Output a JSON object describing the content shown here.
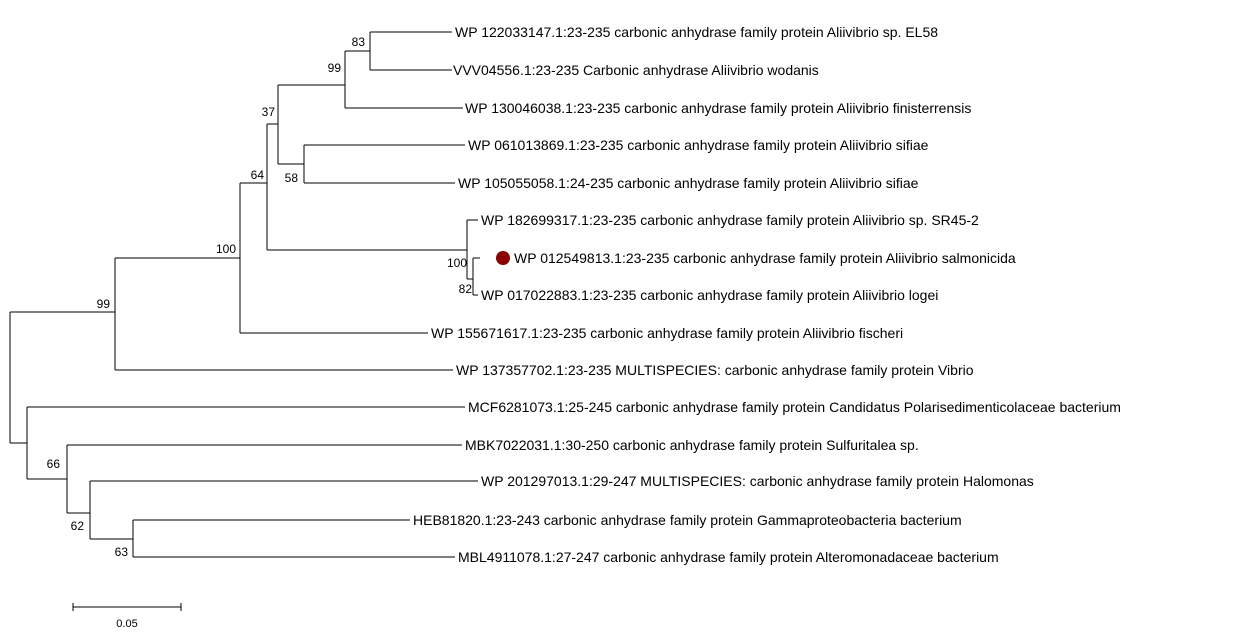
{
  "taxa": [
    {
      "id": "t1",
      "label": "WP 122033147.1:23-235 carbonic anhydrase family protein Aliivibrio sp. EL58"
    },
    {
      "id": "t2",
      "label": "VVV04556.1:23-235 Carbonic anhydrase Aliivibrio wodanis"
    },
    {
      "id": "t3",
      "label": "WP 130046038.1:23-235 carbonic anhydrase family protein Aliivibrio finisterrensis"
    },
    {
      "id": "t4",
      "label": "WP 061013869.1:23-235 carbonic anhydrase family protein Aliivibrio sifiae"
    },
    {
      "id": "t5",
      "label": "WP 105055058.1:24-235 carbonic anhydrase family protein Aliivibrio sifiae"
    },
    {
      "id": "t6",
      "label": "WP 182699317.1:23-235 carbonic anhydrase family protein Aliivibrio sp. SR45-2"
    },
    {
      "id": "t7",
      "label": "WP 012549813.1:23-235 carbonic anhydrase family protein Aliivibrio salmonicida",
      "marker_color": "#8b0000"
    },
    {
      "id": "t8",
      "label": "WP 017022883.1:23-235 carbonic anhydrase family protein Aliivibrio logei"
    },
    {
      "id": "t9",
      "label": "WP 155671617.1:23-235 carbonic anhydrase family protein Aliivibrio fischeri"
    },
    {
      "id": "t10",
      "label": "WP 137357702.1:23-235 MULTISPECIES: carbonic anhydrase family protein Vibrio"
    },
    {
      "id": "t11",
      "label": "MCF6281073.1:25-245 carbonic anhydrase family protein Candidatus Polarisedimenticolaceae bacterium"
    },
    {
      "id": "t12",
      "label": "MBK7022031.1:30-250 carbonic anhydrase family protein Sulfuritalea sp."
    },
    {
      "id": "t13",
      "label": "WP 201297013.1:29-247 MULTISPECIES: carbonic anhydrase family protein Halomonas"
    },
    {
      "id": "t14",
      "label": "HEB81820.1:23-243 carbonic anhydrase family protein Gammaproteobacteria bacterium"
    },
    {
      "id": "t15",
      "label": "MBL4911078.1:27-247 carbonic anhydrase family protein Alteromonadaceae bacterium"
    }
  ],
  "bootstrap": {
    "n83": "83",
    "n99a": "99",
    "n37": "37",
    "n58": "58",
    "n64": "64",
    "n100a": "100",
    "n100b": "100",
    "n82": "82",
    "n99b": "99",
    "n66": "66",
    "n62": "62",
    "n63": "63"
  },
  "scale_bar": {
    "label": "0.05",
    "length": 0.05
  }
}
